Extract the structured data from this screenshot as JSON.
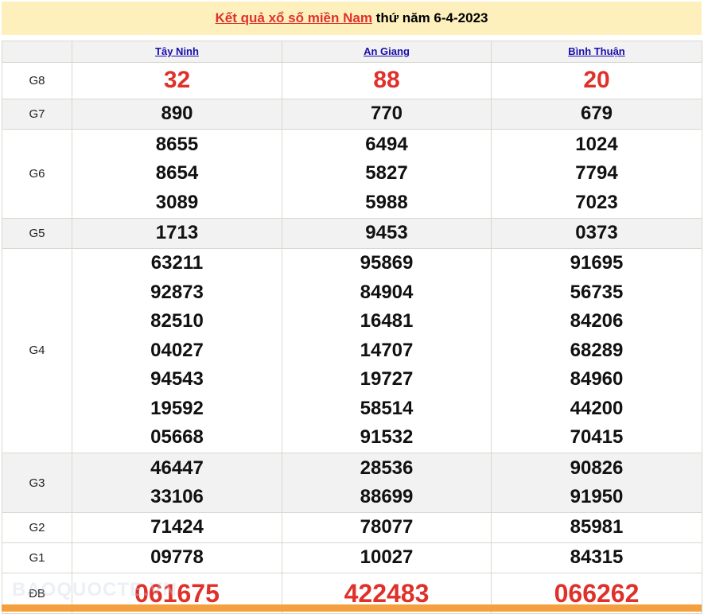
{
  "title": {
    "link": "Kết quả xổ số miền Nam",
    "rest": " thứ năm 6-4-2023"
  },
  "provinces": [
    "Tây Ninh",
    "An Giang",
    "Bình Thuận"
  ],
  "prizes": [
    {
      "label": "G8",
      "values": [
        [
          "32"
        ],
        [
          "88"
        ],
        [
          "20"
        ]
      ]
    },
    {
      "label": "G7",
      "values": [
        [
          "890"
        ],
        [
          "770"
        ],
        [
          "679"
        ]
      ]
    },
    {
      "label": "G6",
      "values": [
        [
          "8655",
          "8654",
          "3089"
        ],
        [
          "6494",
          "5827",
          "5988"
        ],
        [
          "1024",
          "7794",
          "7023"
        ]
      ]
    },
    {
      "label": "G5",
      "values": [
        [
          "1713"
        ],
        [
          "9453"
        ],
        [
          "0373"
        ]
      ]
    },
    {
      "label": "G4",
      "values": [
        [
          "63211",
          "92873",
          "82510",
          "04027",
          "94543",
          "19592",
          "05668"
        ],
        [
          "95869",
          "84904",
          "16481",
          "14707",
          "19727",
          "58514",
          "91532"
        ],
        [
          "91695",
          "56735",
          "84206",
          "68289",
          "84960",
          "44200",
          "70415"
        ]
      ]
    },
    {
      "label": "G3",
      "values": [
        [
          "46447",
          "33106"
        ],
        [
          "28536",
          "88699"
        ],
        [
          "90826",
          "91950"
        ]
      ]
    },
    {
      "label": "G2",
      "values": [
        [
          "71424"
        ],
        [
          "78077"
        ],
        [
          "85981"
        ]
      ]
    },
    {
      "label": "G1",
      "values": [
        [
          "09778"
        ],
        [
          "10027"
        ],
        [
          "84315"
        ]
      ]
    },
    {
      "label": "ĐB",
      "values": [
        [
          "061675"
        ],
        [
          "422483"
        ],
        [
          "066262"
        ]
      ]
    }
  ],
  "watermark": "BAOQUOCTE.VN",
  "colors": {
    "accent": "#e0302a",
    "header_bg": "#fdf0bd",
    "link": "#1a0dab",
    "bottom_bar": "#f4a03e"
  }
}
